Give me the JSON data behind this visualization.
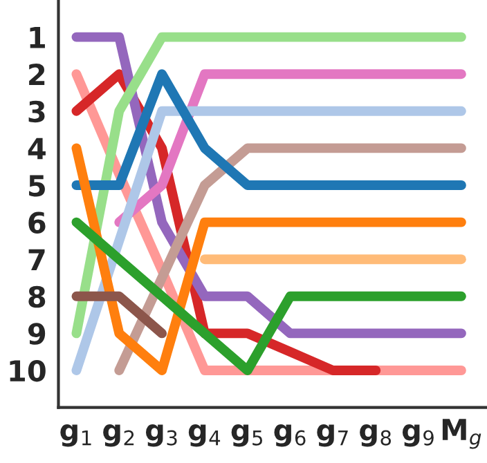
{
  "chart_data": {
    "type": "line",
    "categories": [
      "g$_{1}$",
      "g$_{2}$",
      "g$_{3}$",
      "g$_{4}$",
      "g$_{5}$",
      "g$_{6}$",
      "g$_{7}$",
      "g$_{8}$",
      "g$_{9}$",
      "M$_{g}$"
    ],
    "series": [
      {
        "color": "#ff9896",
        "values": [
          2,
          4.7,
          7.3,
          10,
          10,
          10,
          10,
          10,
          10,
          10
        ]
      },
      {
        "color": "#d62728",
        "values": [
          3,
          2,
          4,
          9,
          9,
          9.5,
          10,
          10,
          null,
          null
        ]
      },
      {
        "color": "#9467bd",
        "values": [
          1,
          1,
          6,
          8,
          8,
          9,
          9,
          9,
          9,
          9
        ]
      },
      {
        "color": "#98df8a",
        "values": [
          9,
          3,
          1,
          1,
          1,
          1,
          1,
          1,
          1,
          1
        ]
      },
      {
        "color": "#e377c2",
        "values": [
          null,
          6,
          5,
          2,
          2,
          2,
          2,
          2,
          2,
          2
        ]
      },
      {
        "color": "#aec7e8",
        "values": [
          10,
          6.5,
          3,
          3,
          3,
          3,
          3,
          3,
          3,
          3
        ]
      },
      {
        "color": "#c49c94",
        "values": [
          null,
          10,
          7.5,
          5,
          4,
          4,
          4,
          4,
          4,
          4
        ]
      },
      {
        "color": "#1f77b4",
        "values": [
          5,
          5,
          2,
          4,
          5,
          5,
          5,
          5,
          5,
          5
        ]
      },
      {
        "color": "#ff7f0e",
        "values": [
          4,
          9,
          10,
          6,
          6,
          6,
          6,
          6,
          6,
          6
        ]
      },
      {
        "color": "#ffbb78",
        "values": [
          null,
          null,
          null,
          7,
          7,
          7,
          7,
          7,
          7,
          7
        ]
      },
      {
        "color": "#8c564b",
        "values": [
          8,
          8,
          9,
          null,
          null,
          null,
          null,
          null,
          null,
          null
        ]
      },
      {
        "color": "#2ca02c",
        "values": [
          6,
          7,
          8,
          9,
          10,
          8,
          8,
          8,
          8,
          8
        ]
      }
    ],
    "ylim": [
      11,
      0
    ],
    "yticks": [
      1,
      2,
      3,
      4,
      5,
      6,
      7,
      8,
      9,
      10
    ],
    "grid": false,
    "legend": false,
    "marker": "none",
    "line_style": "solid"
  }
}
